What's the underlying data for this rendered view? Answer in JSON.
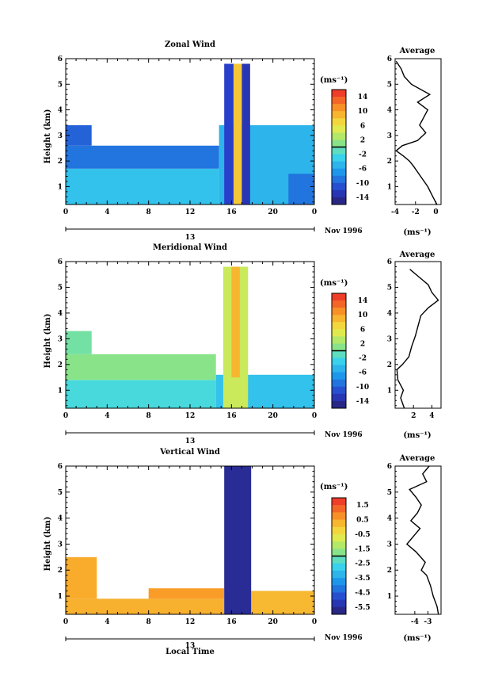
{
  "chart_data": [
    {
      "type": "heatmap",
      "title": "Zonal Wind",
      "ylabel": "Height (km)",
      "unit_label": "(ms⁻¹)",
      "date_label": "Nov 1996",
      "day_label": "13",
      "xlim": [
        0,
        24
      ],
      "ylim": [
        0.3,
        6
      ],
      "x_ticks": [
        "0",
        "4",
        "8",
        "12",
        "16",
        "20",
        "0"
      ],
      "y_ticks": [
        "1",
        "2",
        "3",
        "4",
        "5",
        "6"
      ],
      "colorbar": {
        "range": [
          -16,
          16
        ],
        "ticks": [
          "14",
          "10",
          "6",
          "2",
          "-2",
          "-6",
          "-10",
          "-14"
        ]
      },
      "regions": [
        {
          "x": [
            0,
            14.8
          ],
          "y": [
            0.3,
            1.7
          ],
          "v": -4
        },
        {
          "x": [
            0,
            14.8
          ],
          "y": [
            1.7,
            2.6
          ],
          "v": -9
        },
        {
          "x": [
            0,
            2.5
          ],
          "y": [
            2.6,
            3.4
          ],
          "v": -10
        },
        {
          "x": [
            14.8,
            24
          ],
          "y": [
            0.3,
            3.4
          ],
          "v": -5
        },
        {
          "x": [
            15.3,
            16.2
          ],
          "y": [
            0.3,
            5.8
          ],
          "v": -12
        },
        {
          "x": [
            16.2,
            17.0
          ],
          "y": [
            0.3,
            5.8
          ],
          "v": 8
        },
        {
          "x": [
            17.0,
            17.8
          ],
          "y": [
            0.3,
            5.8
          ],
          "v": -13
        },
        {
          "x": [
            21.5,
            24
          ],
          "y": [
            0.3,
            1.5
          ],
          "v": -9
        }
      ],
      "profile": {
        "title": "Average",
        "xlabel": "(ms⁻¹)",
        "xlim": [
          -4,
          0.5
        ],
        "x_ticks": [
          "-4",
          "-2",
          "0"
        ],
        "height": [
          0.3,
          0.6,
          1.0,
          1.4,
          1.8,
          2.0,
          2.2,
          2.4,
          2.6,
          2.8,
          3.1,
          3.4,
          3.7,
          4.0,
          4.3,
          4.6,
          5.0,
          5.3,
          5.6,
          5.9
        ],
        "values": [
          0.1,
          -0.3,
          -0.8,
          -1.5,
          -2.2,
          -2.6,
          -3.2,
          -3.9,
          -3.3,
          -1.8,
          -1.0,
          -1.6,
          -1.2,
          -0.8,
          -1.8,
          -0.6,
          -2.4,
          -3.1,
          -3.4,
          -3.9
        ]
      }
    },
    {
      "type": "heatmap",
      "title": "Meridional Wind",
      "ylabel": "Height (km)",
      "unit_label": "(ms⁻¹)",
      "date_label": "Nov 1996",
      "day_label": "13",
      "xlim": [
        0,
        24
      ],
      "ylim": [
        0.3,
        6
      ],
      "x_ticks": [
        "0",
        "4",
        "8",
        "12",
        "16",
        "20",
        "0"
      ],
      "y_ticks": [
        "1",
        "2",
        "3",
        "4",
        "5",
        "6"
      ],
      "colorbar": {
        "range": [
          -16,
          16
        ],
        "ticks": [
          "14",
          "10",
          "6",
          "2",
          "-2",
          "-6",
          "-10",
          "-14"
        ]
      },
      "regions": [
        {
          "x": [
            0,
            14.5
          ],
          "y": [
            0.3,
            1.4
          ],
          "v": -2
        },
        {
          "x": [
            0,
            14.5
          ],
          "y": [
            1.4,
            2.4
          ],
          "v": 1
        },
        {
          "x": [
            0,
            2.5
          ],
          "y": [
            2.4,
            3.3
          ],
          "v": 0
        },
        {
          "x": [
            14.5,
            24
          ],
          "y": [
            0.3,
            1.6
          ],
          "v": -4
        },
        {
          "x": [
            15.2,
            17.6
          ],
          "y": [
            0.3,
            5.8
          ],
          "v": 4
        },
        {
          "x": [
            16.0,
            16.8
          ],
          "y": [
            1.5,
            5.8
          ],
          "v": 9
        }
      ],
      "profile": {
        "title": "Average",
        "xlabel": "(ms⁻¹)",
        "xlim": [
          0,
          5
        ],
        "x_ticks": [
          "2",
          "4"
        ],
        "height": [
          0.3,
          0.7,
          1.0,
          1.4,
          1.8,
          2.0,
          2.3,
          2.7,
          3.1,
          3.5,
          3.9,
          4.2,
          4.5,
          4.8,
          5.1,
          5.4,
          5.7
        ],
        "values": [
          1.0,
          0.6,
          0.9,
          0.3,
          0.2,
          0.8,
          1.5,
          1.8,
          2.2,
          2.5,
          2.8,
          3.6,
          4.7,
          4.0,
          3.6,
          2.6,
          1.6
        ]
      }
    },
    {
      "type": "heatmap",
      "title": "Vertical Wind",
      "xlabel": "Local Time",
      "ylabel": "Height (km)",
      "unit_label": "(ms⁻¹)",
      "date_label": "Nov 1996",
      "day_label": "13",
      "xlim": [
        0,
        24
      ],
      "ylim": [
        0.3,
        6
      ],
      "x_ticks": [
        "0",
        "4",
        "8",
        "12",
        "16",
        "20",
        "0"
      ],
      "y_ticks": [
        "1",
        "2",
        "3",
        "4",
        "5",
        "6"
      ],
      "colorbar": {
        "range": [
          -6,
          2
        ],
        "ticks": [
          "1.5",
          "0.5",
          "-0.5",
          "-1.5",
          "-2.5",
          "-3.5",
          "-4.5",
          "-5.5"
        ]
      },
      "regions": [
        {
          "x": [
            0,
            15.3
          ],
          "y": [
            0.3,
            0.9
          ],
          "v": 0.3
        },
        {
          "x": [
            8,
            15.3
          ],
          "y": [
            0.9,
            1.3
          ],
          "v": 0.6
        },
        {
          "x": [
            0,
            3
          ],
          "y": [
            0.9,
            2.5
          ],
          "v": 0.4
        },
        {
          "x": [
            17.9,
            24
          ],
          "y": [
            0.3,
            1.2
          ],
          "v": 0.2
        },
        {
          "x": [
            15.3,
            17.9
          ],
          "y": [
            0.3,
            6.0
          ],
          "v": -5.6
        }
      ],
      "profile": {
        "title": "Average",
        "xlabel": "(ms⁻¹)",
        "xlim": [
          -5.5,
          -2
        ],
        "x_ticks": [
          "-4",
          "-3"
        ],
        "height": [
          0.3,
          0.6,
          1.0,
          1.4,
          1.8,
          2.0,
          2.3,
          2.7,
          3.0,
          3.3,
          3.6,
          3.9,
          4.2,
          4.5,
          4.8,
          5.1,
          5.4,
          5.7,
          6.0
        ],
        "values": [
          -2.2,
          -2.3,
          -2.6,
          -2.8,
          -3.1,
          -3.5,
          -3.2,
          -3.9,
          -4.6,
          -4.1,
          -3.6,
          -4.3,
          -3.8,
          -3.5,
          -3.9,
          -4.4,
          -3.1,
          -3.4,
          -2.9
        ]
      }
    }
  ]
}
